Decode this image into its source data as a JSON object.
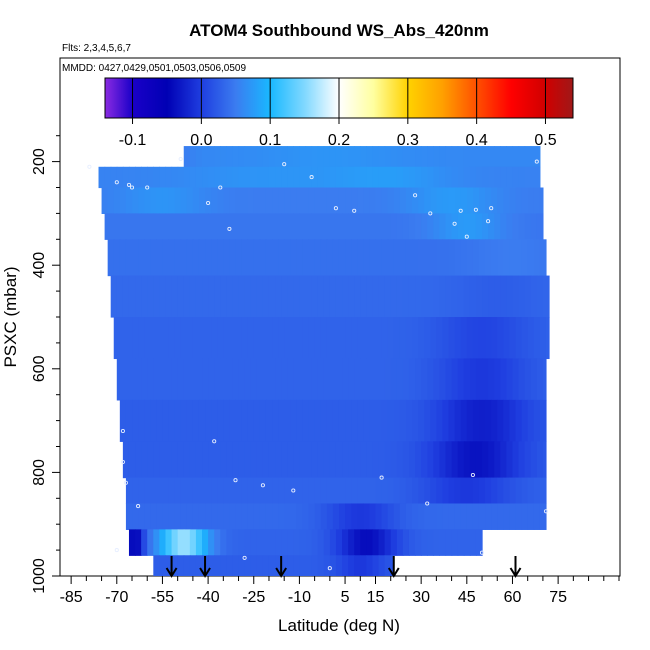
{
  "chart_data": {
    "type": "heatmap",
    "title": "ATOM4 Southbound WS_Abs_420nm",
    "flights_label": "Flts: 2,3,4,5,6,7",
    "dates_label": "MMDD: 0427,0429,0501,0503,0506,0509",
    "xlabel": "Latitude (deg N)",
    "ylabel": "PSXC (mbar)",
    "xlim": [
      -88,
      95
    ],
    "ylim": [
      1000,
      0
    ],
    "x_ticks": [
      -85,
      -70,
      -55,
      -40,
      -25,
      -10,
      5,
      15,
      30,
      45,
      60,
      75
    ],
    "x_tick_labels": [
      "-85",
      "-70",
      "-55",
      "-40",
      "-25",
      "-10",
      "5",
      "15",
      "30",
      "45",
      "60",
      "75"
    ],
    "y_ticks": [
      200,
      400,
      600,
      800,
      1000
    ],
    "y_tick_labels": [
      "200",
      "400",
      "600",
      "800",
      "1000"
    ],
    "colorbar": {
      "range": [
        -0.14,
        0.54
      ],
      "ticks": [
        -0.1,
        0.0,
        0.1,
        0.2,
        0.3,
        0.4,
        0.5
      ],
      "tick_labels": [
        "-0.1",
        "0.0",
        "0.1",
        "0.2",
        "0.3",
        "0.4",
        "0.5"
      ],
      "stops": [
        {
          "v": -0.14,
          "color": "#8a2be2"
        },
        {
          "v": -0.1,
          "color": "#1a00c8"
        },
        {
          "v": -0.05,
          "color": "#0000b4"
        },
        {
          "v": 0.0,
          "color": "#1f3ee0"
        },
        {
          "v": 0.05,
          "color": "#3b7cf0"
        },
        {
          "v": 0.1,
          "color": "#19b8ff"
        },
        {
          "v": 0.15,
          "color": "#80d8ff"
        },
        {
          "v": 0.2,
          "color": "#ffffff"
        },
        {
          "v": 0.25,
          "color": "#ffffa0"
        },
        {
          "v": 0.3,
          "color": "#ffd200"
        },
        {
          "v": 0.35,
          "color": "#ffa000"
        },
        {
          "v": 0.4,
          "color": "#ff5000"
        },
        {
          "v": 0.45,
          "color": "#ff0000"
        },
        {
          "v": 0.5,
          "color": "#d00000"
        },
        {
          "v": 0.54,
          "color": "#a01818"
        }
      ]
    },
    "layers": [
      {
        "p_top": 170,
        "p_bot": 210,
        "lat_min": -48,
        "lat_max": 69,
        "base": 0.06,
        "anomalies": [
          {
            "lat": -60,
            "w": 10,
            "d": -0.04
          },
          {
            "lat": 0,
            "w": 25,
            "d": 0.01
          }
        ]
      },
      {
        "p_top": 210,
        "p_bot": 250,
        "lat_min": -76,
        "lat_max": 69,
        "base": 0.055,
        "anomalies": [
          {
            "lat": -20,
            "w": 30,
            "d": 0.015
          },
          {
            "lat": 20,
            "w": 20,
            "d": 0.02
          }
        ]
      },
      {
        "p_top": 250,
        "p_bot": 300,
        "lat_min": -75,
        "lat_max": 70,
        "base": 0.05,
        "anomalies": [
          {
            "lat": -55,
            "w": 15,
            "d": 0.02
          },
          {
            "lat": 40,
            "w": 15,
            "d": 0.025
          }
        ]
      },
      {
        "p_top": 300,
        "p_bot": 350,
        "lat_min": -74,
        "lat_max": 70,
        "base": 0.045,
        "anomalies": [
          {
            "lat": 45,
            "w": 12,
            "d": 0.03
          }
        ]
      },
      {
        "p_top": 350,
        "p_bot": 420,
        "lat_min": -73,
        "lat_max": 71,
        "base": 0.04,
        "anomalies": [
          {
            "lat": 60,
            "w": 15,
            "d": 0.01
          }
        ]
      },
      {
        "p_top": 420,
        "p_bot": 500,
        "lat_min": -72,
        "lat_max": 72,
        "base": 0.035,
        "anomalies": [
          {
            "lat": 55,
            "w": 15,
            "d": -0.01
          }
        ]
      },
      {
        "p_top": 500,
        "p_bot": 580,
        "lat_min": -71,
        "lat_max": 72,
        "base": 0.03,
        "anomalies": [
          {
            "lat": 50,
            "w": 15,
            "d": -0.025
          }
        ]
      },
      {
        "p_top": 580,
        "p_bot": 660,
        "lat_min": -70,
        "lat_max": 71,
        "base": 0.03,
        "anomalies": [
          {
            "lat": 50,
            "w": 15,
            "d": -0.035
          }
        ]
      },
      {
        "p_top": 660,
        "p_bot": 740,
        "lat_min": -69,
        "lat_max": 71,
        "base": 0.025,
        "anomalies": [
          {
            "lat": 50,
            "w": 15,
            "d": -0.05
          }
        ]
      },
      {
        "p_top": 740,
        "p_bot": 810,
        "lat_min": -68,
        "lat_max": 71,
        "base": 0.025,
        "anomalies": [
          {
            "lat": 48,
            "w": 15,
            "d": -0.06
          }
        ]
      },
      {
        "p_top": 810,
        "p_bot": 860,
        "lat_min": -67,
        "lat_max": 71,
        "base": 0.03,
        "anomalies": [
          {
            "lat": 45,
            "w": 15,
            "d": -0.035
          }
        ]
      },
      {
        "p_top": 860,
        "p_bot": 910,
        "lat_min": -67,
        "lat_max": 71,
        "base": 0.035,
        "anomalies": [
          {
            "lat": 10,
            "w": 12,
            "d": -0.04
          }
        ]
      },
      {
        "p_top": 910,
        "p_bot": 960,
        "lat_min": -66,
        "lat_max": 50,
        "base": 0.03,
        "anomalies": [
          {
            "lat": -48,
            "w": 8,
            "d": 0.13
          },
          {
            "lat": 12,
            "w": 10,
            "d": -0.07
          },
          {
            "lat": -64,
            "w": 3,
            "d": -0.08
          }
        ]
      },
      {
        "p_top": 960,
        "p_bot": 1000,
        "lat_min": -58,
        "lat_max": 21,
        "base": 0.025,
        "anomalies": [
          {
            "lat": 10,
            "w": 8,
            "d": -0.03
          }
        ]
      }
    ],
    "sample_points": [
      {
        "lat": -79,
        "p": 210
      },
      {
        "lat": -70,
        "p": 240
      },
      {
        "lat": -66,
        "p": 245
      },
      {
        "lat": -65,
        "p": 250
      },
      {
        "lat": -60,
        "p": 250
      },
      {
        "lat": -49,
        "p": 195
      },
      {
        "lat": -40,
        "p": 280
      },
      {
        "lat": -36,
        "p": 250
      },
      {
        "lat": -33,
        "p": 330
      },
      {
        "lat": -15,
        "p": 205
      },
      {
        "lat": -6,
        "p": 230
      },
      {
        "lat": 2,
        "p": 290
      },
      {
        "lat": 8,
        "p": 295
      },
      {
        "lat": 28,
        "p": 265
      },
      {
        "lat": 33,
        "p": 300
      },
      {
        "lat": 41,
        "p": 320
      },
      {
        "lat": 43,
        "p": 295
      },
      {
        "lat": 48,
        "p": 293
      },
      {
        "lat": 52,
        "p": 315
      },
      {
        "lat": 53,
        "p": 290
      },
      {
        "lat": 45,
        "p": 345
      },
      {
        "lat": 68,
        "p": 200
      },
      {
        "lat": -68,
        "p": 720
      },
      {
        "lat": -68,
        "p": 780
      },
      {
        "lat": -67,
        "p": 820
      },
      {
        "lat": -38,
        "p": 740
      },
      {
        "lat": -31,
        "p": 815
      },
      {
        "lat": -22,
        "p": 825
      },
      {
        "lat": -12,
        "p": 835
      },
      {
        "lat": 17,
        "p": 810
      },
      {
        "lat": 32,
        "p": 860
      },
      {
        "lat": 47,
        "p": 805
      },
      {
        "lat": 71,
        "p": 875
      },
      {
        "lat": -63,
        "p": 865
      },
      {
        "lat": -70,
        "p": 950
      },
      {
        "lat": -28,
        "p": 965
      },
      {
        "lat": 0,
        "p": 985
      },
      {
        "lat": 50,
        "p": 955
      }
    ],
    "arrow_lats": [
      -52,
      -41,
      -16,
      21,
      61
    ]
  }
}
